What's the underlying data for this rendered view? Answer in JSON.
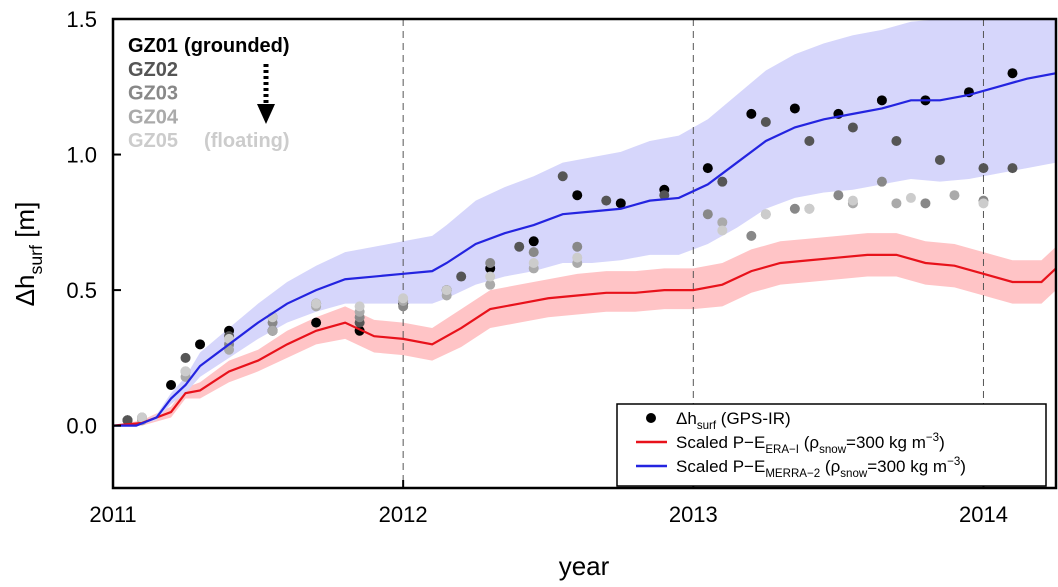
{
  "chart_data": {
    "type": "scatter",
    "xlabel": "year",
    "ylabel": [
      {
        "text": "Δh"
      },
      {
        "text": "surf",
        "shift": "sub"
      },
      {
        "text": " [m]"
      }
    ],
    "xlim": [
      2011,
      2014.25
    ],
    "ylim": [
      -0.23,
      1.5
    ],
    "xticks": [
      2011,
      2012,
      2013,
      2014
    ],
    "yticks": [
      {
        "value": 0,
        "label": "0.0"
      },
      0.5,
      {
        "value": 1,
        "label": "1.0"
      },
      1.5
    ],
    "grid": "x-dashed",
    "series": [
      {
        "name": "GZ01",
        "note": "(grounded)",
        "color": "#000000",
        "x": [
          2011.05,
          2011.2,
          2011.3,
          2011.4,
          2011.55,
          2011.7,
          2011.85,
          2012.0,
          2012.15,
          2012.3,
          2012.45,
          2012.6,
          2012.75,
          2012.9,
          2013.05,
          2013.2,
          2013.35,
          2013.5,
          2013.65,
          2013.8,
          2013.95,
          2014.1
        ],
        "values": [
          0.02,
          0.15,
          0.3,
          0.35,
          0.35,
          0.38,
          0.35,
          0.45,
          0.5,
          0.58,
          0.68,
          0.85,
          0.82,
          0.87,
          0.95,
          1.15,
          1.17,
          1.15,
          1.2,
          1.2,
          1.23,
          1.3
        ]
      },
      {
        "name": "GZ02",
        "color": "#555555",
        "x": [
          2011.05,
          2011.25,
          2011.4,
          2011.55,
          2011.7,
          2011.85,
          2012.0,
          2012.2,
          2012.4,
          2012.55,
          2012.7,
          2012.9,
          2013.1,
          2013.25,
          2013.4,
          2013.55,
          2013.7,
          2013.85,
          2014.0,
          2014.1
        ],
        "values": [
          0.02,
          0.25,
          0.33,
          0.4,
          0.45,
          0.38,
          0.45,
          0.55,
          0.66,
          0.92,
          0.83,
          0.85,
          0.9,
          1.12,
          1.05,
          1.1,
          1.05,
          0.98,
          0.95,
          0.95
        ]
      },
      {
        "name": "GZ03",
        "color": "#888888",
        "x": [
          2011.1,
          2011.25,
          2011.4,
          2011.55,
          2011.7,
          2011.85,
          2012.0,
          2012.15,
          2012.3,
          2012.45,
          2012.6,
          2013.05,
          2013.2,
          2013.35,
          2013.5,
          2013.65,
          2013.8,
          2014.0
        ],
        "values": [
          0.03,
          0.2,
          0.3,
          0.38,
          0.45,
          0.4,
          0.44,
          0.5,
          0.6,
          0.64,
          0.66,
          0.78,
          0.7,
          0.8,
          0.85,
          0.9,
          0.82,
          0.83
        ]
      },
      {
        "name": "GZ04",
        "color": "#aaaaaa",
        "x": [
          2011.1,
          2011.25,
          2011.4,
          2011.55,
          2011.7,
          2011.85,
          2012.0,
          2012.15,
          2012.3,
          2012.45,
          2012.6,
          2013.1,
          2013.25,
          2013.4,
          2013.55,
          2013.7,
          2013.9
        ],
        "values": [
          0.02,
          0.18,
          0.28,
          0.35,
          0.44,
          0.42,
          0.46,
          0.48,
          0.52,
          0.58,
          0.6,
          0.75,
          0.78,
          0.8,
          0.82,
          0.82,
          0.85
        ]
      },
      {
        "name": "GZ05",
        "note": "(floating)",
        "color": "#cccccc",
        "x": [
          2011.1,
          2011.25,
          2011.4,
          2011.55,
          2011.7,
          2011.85,
          2012.0,
          2012.15,
          2012.3,
          2012.45,
          2012.6,
          2013.1,
          2013.25,
          2013.4,
          2013.55,
          2013.75,
          2014.0
        ],
        "values": [
          0.03,
          0.2,
          0.32,
          0.4,
          0.45,
          0.44,
          0.47,
          0.5,
          0.55,
          0.6,
          0.62,
          0.72,
          0.78,
          0.8,
          0.83,
          0.84,
          0.82
        ]
      }
    ],
    "scatter_legend": [
      {
        "text": "Δh"
      },
      {
        "text": "surf",
        "shift": "sub"
      },
      {
        "text": " (GPS-IR)"
      }
    ],
    "model_lines": [
      {
        "name": [
          {
            "text": "Scaled P−E"
          },
          {
            "text": "ERA−I",
            "shift": "sub"
          },
          {
            "text": " (ρ"
          },
          {
            "text": "snow",
            "shift": "sub"
          },
          {
            "text": "=300 kg m"
          },
          {
            "text": "−3",
            "shift": "sup"
          },
          {
            "text": ")"
          }
        ],
        "color": "#e8121b",
        "band_color": "#ffc4c6",
        "x": [
          2011.0,
          2011.1,
          2011.2,
          2011.25,
          2011.3,
          2011.4,
          2011.5,
          2011.6,
          2011.7,
          2011.8,
          2011.9,
          2012.0,
          2012.1,
          2012.2,
          2012.3,
          2012.4,
          2012.5,
          2012.6,
          2012.7,
          2012.8,
          2012.9,
          2013.0,
          2013.1,
          2013.2,
          2013.3,
          2013.4,
          2013.5,
          2013.6,
          2013.7,
          2013.8,
          2013.9,
          2014.0,
          2014.1,
          2014.2,
          2014.25
        ],
        "values": [
          0,
          0.01,
          0.05,
          0.12,
          0.13,
          0.2,
          0.24,
          0.3,
          0.35,
          0.38,
          0.33,
          0.32,
          0.3,
          0.36,
          0.43,
          0.45,
          0.47,
          0.48,
          0.49,
          0.49,
          0.5,
          0.5,
          0.52,
          0.57,
          0.6,
          0.61,
          0.62,
          0.63,
          0.63,
          0.6,
          0.59,
          0.56,
          0.53,
          0.53,
          0.58
        ],
        "lower": [
          0,
          0,
          0.03,
          0.1,
          0.1,
          0.16,
          0.2,
          0.25,
          0.3,
          0.32,
          0.27,
          0.26,
          0.24,
          0.29,
          0.36,
          0.38,
          0.4,
          0.41,
          0.42,
          0.42,
          0.43,
          0.43,
          0.44,
          0.49,
          0.52,
          0.53,
          0.54,
          0.55,
          0.55,
          0.52,
          0.51,
          0.48,
          0.45,
          0.45,
          0.5
        ],
        "upper": [
          0,
          0.02,
          0.07,
          0.14,
          0.16,
          0.24,
          0.28,
          0.35,
          0.4,
          0.44,
          0.39,
          0.38,
          0.36,
          0.43,
          0.5,
          0.52,
          0.54,
          0.56,
          0.57,
          0.57,
          0.58,
          0.58,
          0.6,
          0.65,
          0.68,
          0.69,
          0.7,
          0.71,
          0.71,
          0.68,
          0.67,
          0.64,
          0.61,
          0.61,
          0.66
        ]
      },
      {
        "name": [
          {
            "text": "Scaled P−E"
          },
          {
            "text": "MERRA−2",
            "shift": "sub"
          },
          {
            "text": " (ρ"
          },
          {
            "text": "snow",
            "shift": "sub"
          },
          {
            "text": "=300 kg m"
          },
          {
            "text": "−3",
            "shift": "sup"
          },
          {
            "text": ")"
          }
        ],
        "color": "#2424e0",
        "band_color": "#d6d6fb",
        "x": [
          2011.0,
          2011.08,
          2011.15,
          2011.2,
          2011.25,
          2011.3,
          2011.4,
          2011.5,
          2011.6,
          2011.7,
          2011.8,
          2011.9,
          2012.0,
          2012.1,
          2012.15,
          2012.25,
          2012.35,
          2012.45,
          2012.55,
          2012.65,
          2012.75,
          2012.85,
          2012.95,
          2013.05,
          2013.15,
          2013.25,
          2013.35,
          2013.45,
          2013.55,
          2013.65,
          2013.75,
          2013.85,
          2013.95,
          2014.05,
          2014.15,
          2014.25
        ],
        "values": [
          0,
          0,
          0.03,
          0.1,
          0.15,
          0.22,
          0.3,
          0.38,
          0.45,
          0.5,
          0.54,
          0.55,
          0.56,
          0.57,
          0.6,
          0.67,
          0.71,
          0.74,
          0.78,
          0.79,
          0.8,
          0.83,
          0.84,
          0.89,
          0.97,
          1.05,
          1.1,
          1.13,
          1.15,
          1.17,
          1.2,
          1.2,
          1.22,
          1.25,
          1.28,
          1.3
        ],
        "lower": [
          0,
          0,
          0.02,
          0.08,
          0.12,
          0.18,
          0.25,
          0.32,
          0.38,
          0.42,
          0.45,
          0.45,
          0.45,
          0.45,
          0.47,
          0.52,
          0.55,
          0.57,
          0.6,
          0.6,
          0.61,
          0.63,
          0.63,
          0.67,
          0.73,
          0.8,
          0.84,
          0.86,
          0.87,
          0.89,
          0.91,
          0.9,
          0.91,
          0.93,
          0.95,
          0.97
        ],
        "upper": [
          0,
          0,
          0.04,
          0.12,
          0.18,
          0.27,
          0.36,
          0.45,
          0.53,
          0.59,
          0.64,
          0.66,
          0.68,
          0.7,
          0.74,
          0.83,
          0.88,
          0.92,
          0.97,
          0.99,
          1.01,
          1.05,
          1.07,
          1.13,
          1.22,
          1.31,
          1.37,
          1.41,
          1.44,
          1.46,
          1.49,
          1.5,
          1.5,
          1.5,
          1.5,
          1.5
        ]
      }
    ]
  }
}
